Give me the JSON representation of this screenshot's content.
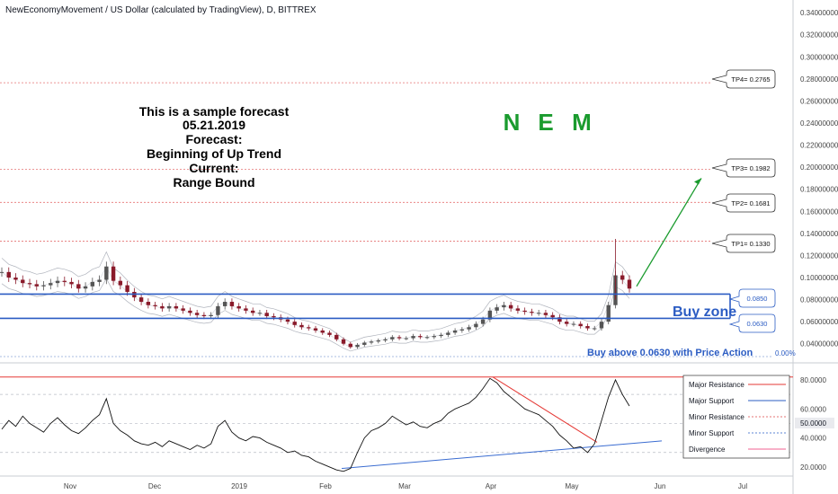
{
  "header": {
    "title": "NewEconomyMovement / US Dollar (calculated by TradingView), D, BITTREX"
  },
  "forecast_lines": [
    "This is a sample forecast",
    "05.21.2019",
    "Forecast:",
    "Beginning of Up Trend",
    "Current:",
    "Range Bound"
  ],
  "ticker_letters": [
    "N",
    "E",
    "M"
  ],
  "targets": [
    {
      "label": "TP4= 0.2765",
      "value": 0.2765
    },
    {
      "label": "TP3= 0.1982",
      "value": 0.1982
    },
    {
      "label": "TP2= 0.1681",
      "value": 0.1681
    },
    {
      "label": "TP1= 0.1330",
      "value": 0.133
    }
  ],
  "zone": {
    "upper_label": "0.0850",
    "upper": 0.085,
    "lower_label": "0.0630",
    "lower": 0.063,
    "title": "Buy zone",
    "note": "Buy above 0.0630 with Price Action"
  },
  "pct_label": "0.00%",
  "legend": [
    {
      "label": "Major Resistance",
      "color": "#e53935",
      "style": "solid"
    },
    {
      "label": "Major Support",
      "color": "#2b5cc3",
      "style": "solid"
    },
    {
      "label": "Minor Resistance",
      "color": "#e57373",
      "style": "dotted"
    },
    {
      "label": "Minor Support",
      "color": "#5c85d6",
      "style": "dotted"
    },
    {
      "label": "Divergence",
      "color": "#f06292",
      "style": "solid"
    }
  ],
  "colors": {
    "buy_zone": "#2b5cc3",
    "arrow": "#1a9b2e",
    "tp_line": "#e57373",
    "candle_up": "#555555",
    "candle_down": "#8a1a2a",
    "rsi_line": "#111111",
    "divergence": "#e53935",
    "support": "#3a6cd1"
  },
  "chart_data": {
    "type": "candlestick",
    "price_axis": {
      "ticks": [
        "0.34000000",
        "0.32000000",
        "0.30000000",
        "0.28000000",
        "0.26000000",
        "0.24000000",
        "0.22000000",
        "0.20000000",
        "0.18000000",
        "0.16000000",
        "0.14000000",
        "0.12000000",
        "0.10000000",
        "0.08000000",
        "0.06000000",
        "0.04000000"
      ],
      "range": [
        0.03,
        0.345
      ]
    },
    "time_axis": [
      "Nov",
      "Dec",
      "2019",
      "Feb",
      "Mar",
      "Apr",
      "May",
      "Jun",
      "Jul"
    ],
    "price_series": [
      0.105,
      0.1,
      0.098,
      0.095,
      0.094,
      0.092,
      0.093,
      0.095,
      0.097,
      0.096,
      0.094,
      0.09,
      0.092,
      0.096,
      0.098,
      0.11,
      0.097,
      0.093,
      0.087,
      0.082,
      0.078,
      0.075,
      0.074,
      0.072,
      0.074,
      0.072,
      0.07,
      0.068,
      0.066,
      0.065,
      0.066,
      0.074,
      0.078,
      0.074,
      0.072,
      0.07,
      0.068,
      0.068,
      0.065,
      0.064,
      0.062,
      0.06,
      0.057,
      0.055,
      0.054,
      0.052,
      0.05,
      0.048,
      0.044,
      0.04,
      0.037,
      0.039,
      0.041,
      0.042,
      0.043,
      0.044,
      0.046,
      0.045,
      0.045,
      0.047,
      0.046,
      0.046,
      0.047,
      0.048,
      0.05,
      0.052,
      0.053,
      0.055,
      0.058,
      0.062,
      0.07,
      0.073,
      0.075,
      0.072,
      0.07,
      0.069,
      0.068,
      0.068,
      0.066,
      0.064,
      0.06,
      0.058,
      0.058,
      0.056,
      0.054,
      0.054,
      0.06,
      0.075,
      0.102,
      0.098,
      0.09
    ],
    "rsi": {
      "ticks": [
        "80.0000",
        "60.0000",
        "40.0000",
        "20.0000"
      ],
      "last_label": "50.0000",
      "range": [
        15,
        88
      ],
      "levels": [
        70,
        50,
        30
      ],
      "series": [
        46,
        52,
        48,
        55,
        50,
        47,
        44,
        50,
        54,
        49,
        45,
        43,
        47,
        52,
        56,
        67,
        50,
        45,
        42,
        38,
        36,
        35,
        37,
        34,
        38,
        36,
        34,
        32,
        35,
        33,
        36,
        48,
        52,
        44,
        40,
        38,
        41,
        40,
        37,
        35,
        33,
        30,
        31,
        28,
        27,
        24,
        22,
        20,
        18,
        17,
        19,
        30,
        40,
        45,
        47,
        50,
        55,
        52,
        49,
        51,
        48,
        47,
        50,
        52,
        57,
        60,
        62,
        64,
        68,
        74,
        81,
        78,
        72,
        68,
        64,
        60,
        58,
        56,
        52,
        48,
        42,
        38,
        33,
        34,
        30,
        36,
        52,
        68,
        80,
        70,
        62
      ]
    },
    "time_labels_visible": true
  }
}
